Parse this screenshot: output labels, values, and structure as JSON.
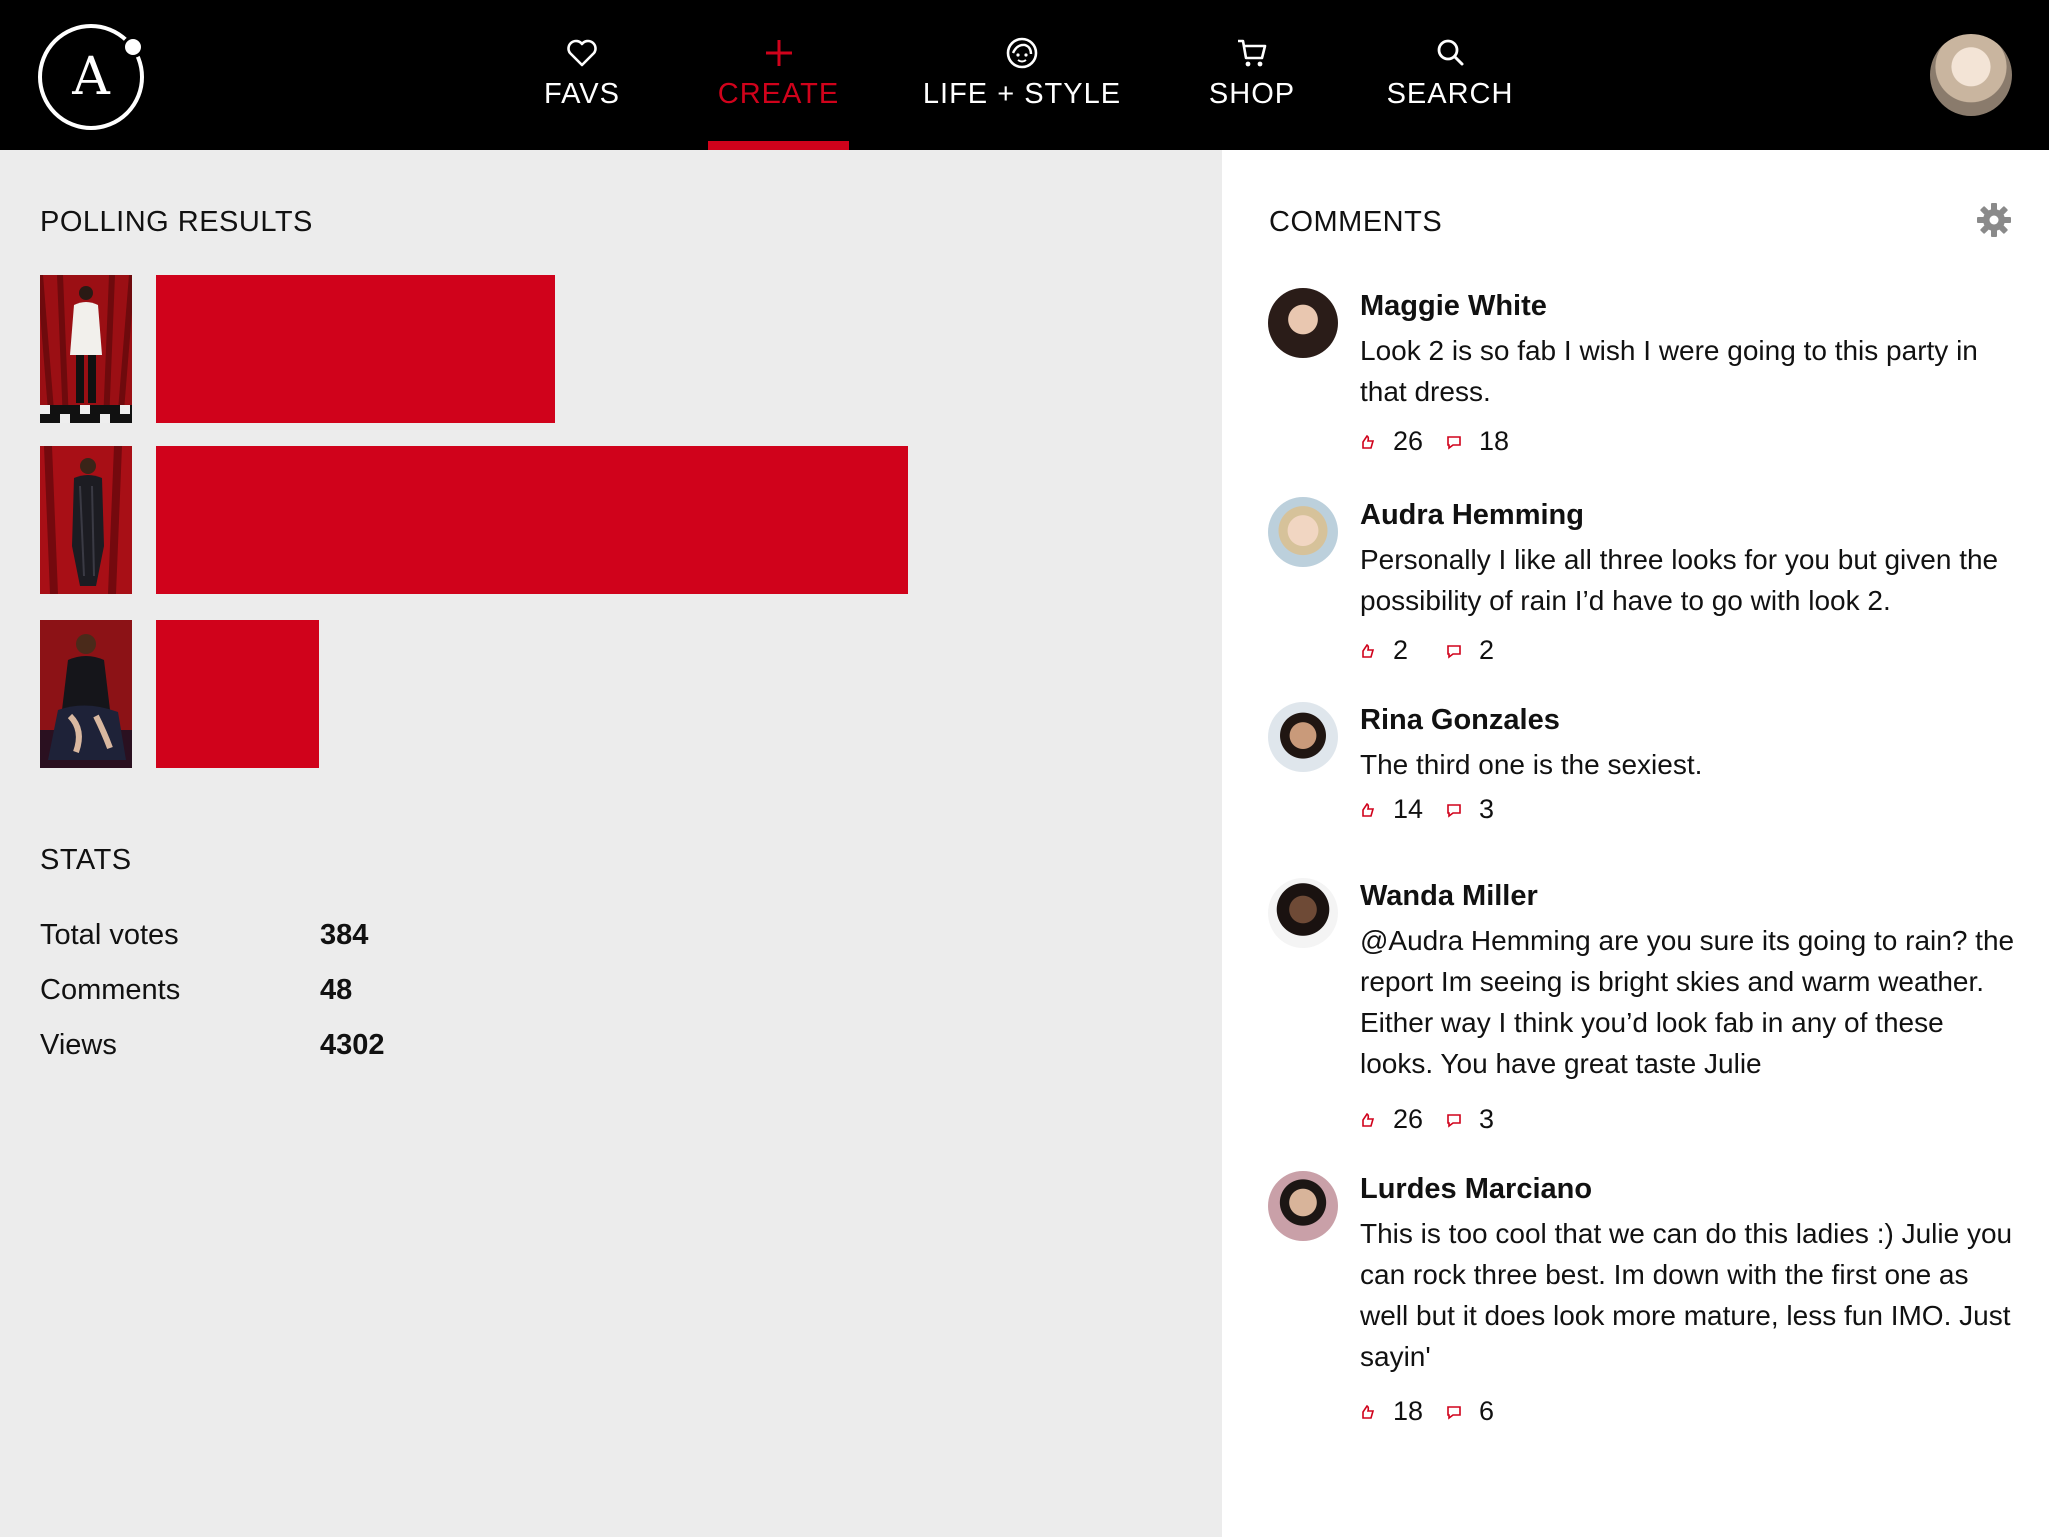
{
  "nav": {
    "logo_letter": "A",
    "items": [
      {
        "label": "FAVS",
        "icon": "heart-icon"
      },
      {
        "label": "CREATE",
        "icon": "plus-icon",
        "active": true
      },
      {
        "label": "LIFE + STYLE",
        "icon": "face-icon"
      },
      {
        "label": "SHOP",
        "icon": "cart-icon"
      },
      {
        "label": "SEARCH",
        "icon": "search-icon"
      }
    ],
    "accent_color": "#d0021b"
  },
  "polling": {
    "title": "POLLING RESULTS",
    "bars": [
      {
        "look": 1,
        "fraction": 0.53
      },
      {
        "look": 2,
        "fraction": 1.0
      },
      {
        "look": 3,
        "fraction": 0.217
      }
    ]
  },
  "stats": {
    "title": "STATS",
    "rows": [
      {
        "label": "Total votes",
        "value": "384"
      },
      {
        "label": "Comments",
        "value": "48"
      },
      {
        "label": "Views",
        "value": "4302"
      }
    ]
  },
  "comments": {
    "title": "COMMENTS",
    "items": [
      {
        "name": "Maggie White",
        "text": "Look 2 is so fab I wish I were going to this party in that dress.",
        "likes": "26",
        "replies": "18"
      },
      {
        "name": "Audra Hemming",
        "text": "Personally I like all three looks for you but given the possibility of rain I’d have to go with look 2.",
        "likes": "2",
        "replies": "2"
      },
      {
        "name": "Rina Gonzales",
        "text": "The third one is the sexiest.",
        "likes": "14",
        "replies": "3"
      },
      {
        "name": "Wanda Miller",
        "text": "@Audra Hemming are you sure its going to rain? the report Im seeing is bright skies and warm weather. Either way I think you’d look fab in any of these looks. You have great taste Julie",
        "likes": "26",
        "replies": "3"
      },
      {
        "name": "Lurdes Marciano",
        "text": "This is too cool that we can do this ladies :) Julie you can rock three best. Im down with the first one as well but it does look more mature, less fun IMO. Just sayin'",
        "likes": "18",
        "replies": "6"
      }
    ]
  }
}
